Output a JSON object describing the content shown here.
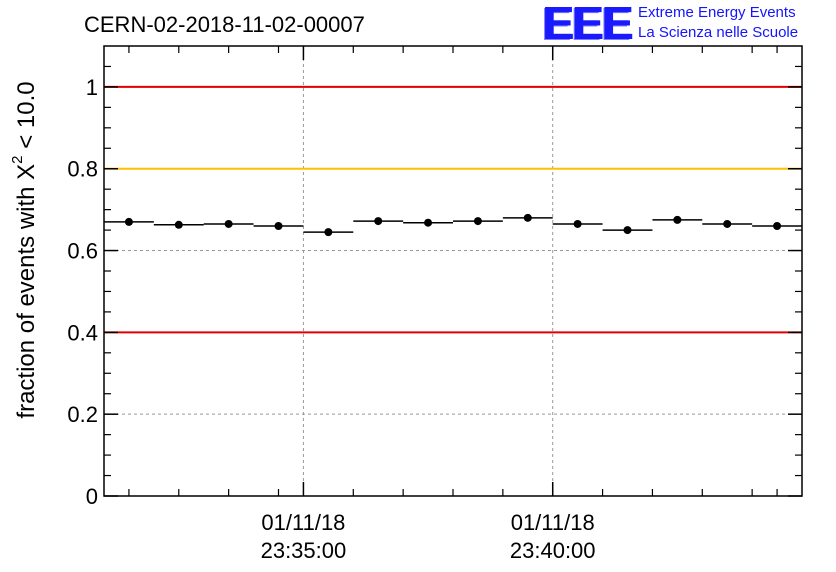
{
  "header": {
    "title": "CERN-02-2018-11-02-00007",
    "logo": {
      "mark": "EEE",
      "line1": "Extreme Energy Events",
      "line2": "La Scienza nelle Scuole",
      "color": "#1a1aff"
    }
  },
  "chart_data": {
    "type": "scatter",
    "ylabel_main": "fraction of events with X",
    "ylabel_sup": "2",
    "ylabel_tail": " < 10.0",
    "ylim": [
      0,
      1.1
    ],
    "yticks": [
      0,
      0.2,
      0.4,
      0.6,
      0.8,
      1
    ],
    "ytick_labels": [
      "0",
      "0.2",
      "0.4",
      "0.6",
      "0.8",
      "1"
    ],
    "xlim_minutes": [
      -4.0,
      10.0
    ],
    "xticks_major": [
      {
        "minutes": 0,
        "line1": "01/11/18",
        "line2": "23:35:00"
      },
      {
        "minutes": 5,
        "line1": "01/11/18",
        "line2": "23:40:00"
      }
    ],
    "xticks_minor_minutes": [
      -3.5,
      -2.5,
      -1.5,
      -0.5,
      1.0,
      2.0,
      3.0,
      4.0,
      6.0,
      7.0,
      8.0,
      9.0,
      9.5
    ],
    "grid": true,
    "reference_lines": [
      {
        "y": 1.0,
        "color": "#e00000"
      },
      {
        "y": 0.8,
        "color": "#ffc000"
      },
      {
        "y": 0.4,
        "color": "#e00000"
      }
    ],
    "series": [
      {
        "x_minutes": [
          -4.0,
          -3.0,
          -2.0,
          -1.0,
          0.0,
          1.0,
          2.0,
          3.0,
          4.0,
          5.0,
          6.0,
          7.0,
          8.0,
          9.0
        ],
        "bin_width_minutes": 1.0,
        "y": [
          0.67,
          0.663,
          0.665,
          0.66,
          0.645,
          0.672,
          0.668,
          0.672,
          0.68,
          0.665,
          0.65,
          0.675,
          0.665,
          0.66
        ]
      }
    ]
  }
}
